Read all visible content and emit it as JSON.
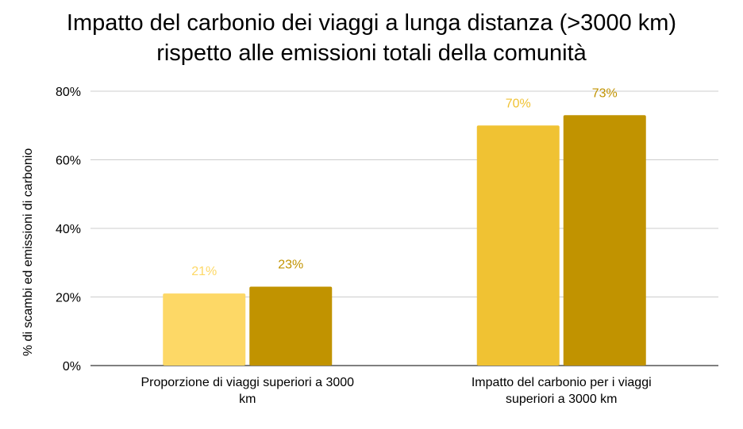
{
  "chart_data": {
    "type": "bar",
    "title_lines": [
      "Impatto del carbonio dei viaggi a lunga distanza (>3000 km)",
      "rispetto alle emissioni totali della comunità"
    ],
    "xlabel": "",
    "ylabel": "% di scambi ed emissioni di carbonio",
    "ylim": [
      0,
      80
    ],
    "yticks": [
      "0%",
      "20%",
      "40%",
      "60%",
      "80%"
    ],
    "ytick_values": [
      0,
      20,
      40,
      60,
      80
    ],
    "grid": true,
    "categories": [
      [
        "Proporzione di viaggi superiori a 3000",
        "km"
      ],
      [
        "Impatto del carbonio per i viaggi",
        "superiori a 3000 km"
      ]
    ],
    "series": [
      {
        "values": [
          21,
          70
        ],
        "labels": [
          "21%",
          "70%"
        ],
        "color": "#fdd866",
        "label_color": "#fdd866"
      },
      {
        "values": [
          23,
          73
        ],
        "labels": [
          "23%",
          "73%"
        ],
        "color": "#c19300",
        "label_color": "#c19300"
      }
    ],
    "bar_colors": [
      [
        "#fdd866",
        "#c19300"
      ],
      [
        "#f0c233",
        "#c19300"
      ]
    ],
    "label_colors": [
      [
        "#fdd866",
        "#c19300"
      ],
      [
        "#f0c233",
        "#c19300"
      ]
    ],
    "legend": "none"
  }
}
